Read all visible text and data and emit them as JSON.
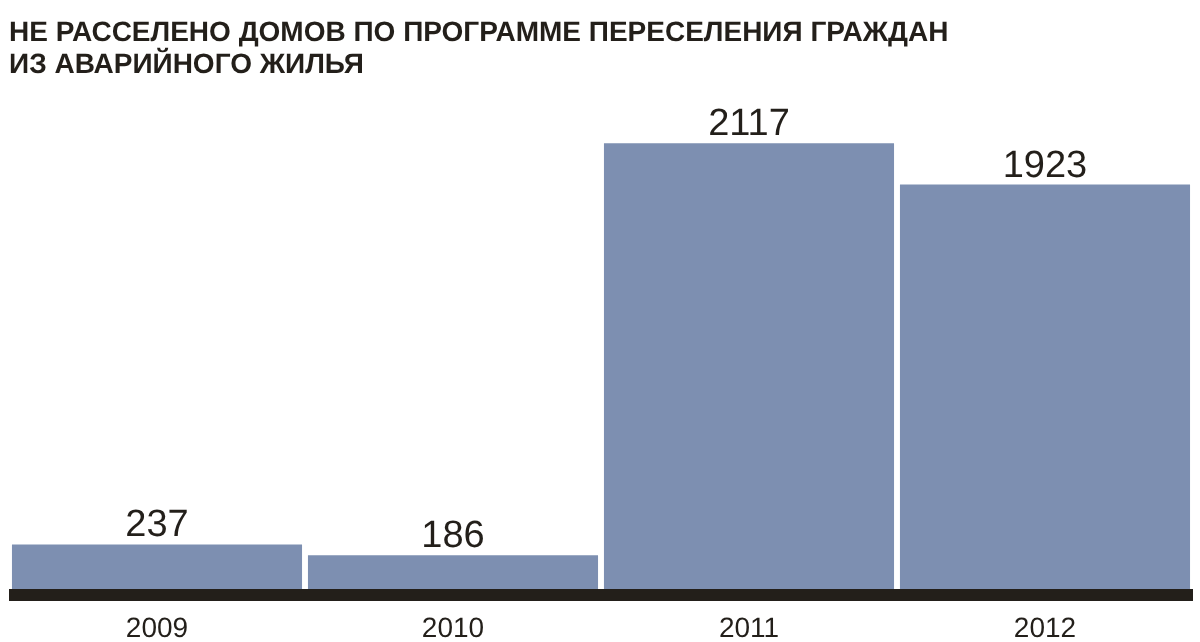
{
  "chart_data": {
    "type": "bar",
    "title": "НЕ РАССЕЛЕНО ДОМОВ ПО ПРОГРАММЕ ПЕРЕСЕЛЕНИЯ ГРАЖДАН\nИЗ АВАРИЙНОГО ЖИЛЬЯ",
    "categories": [
      "2009",
      "2010",
      "2011",
      "2012"
    ],
    "values": [
      237,
      186,
      2117,
      1923
    ],
    "color": "#7d8fb1",
    "data_labels": true,
    "grid": false
  }
}
